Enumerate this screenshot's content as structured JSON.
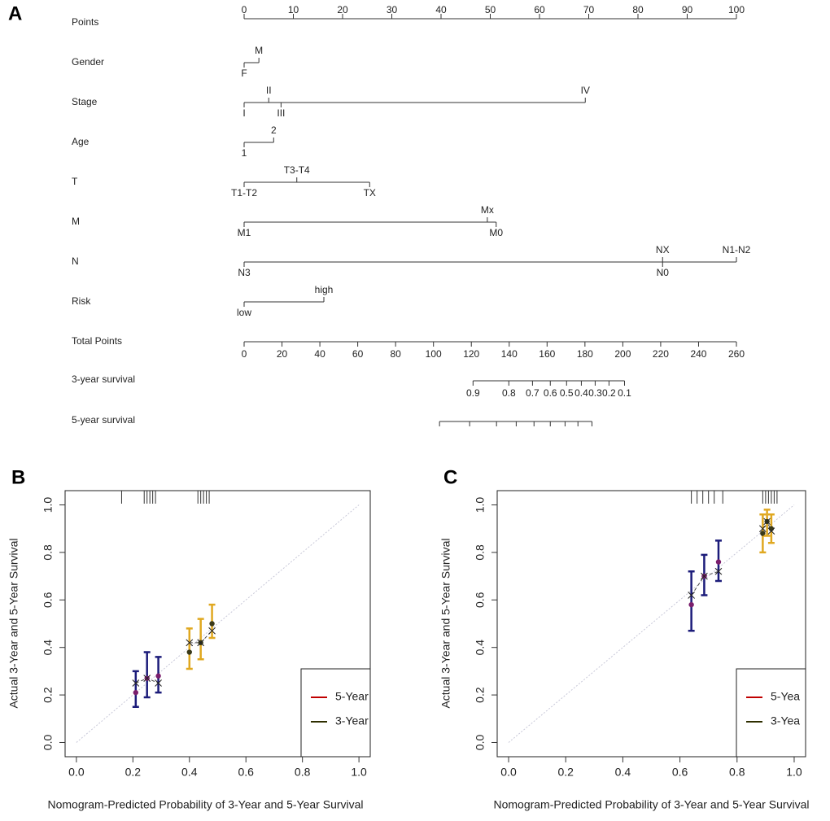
{
  "chart_data": [
    {
      "type": "nomogram",
      "panel": "A",
      "points_axis": {
        "name": "Points",
        "lim": [
          0,
          100
        ],
        "ticks": [
          0,
          10,
          20,
          30,
          40,
          50,
          60,
          70,
          80,
          90,
          100
        ]
      },
      "variables": [
        {
          "name": "Gender",
          "levels": [
            "F",
            "M"
          ],
          "points": [
            0,
            3
          ]
        },
        {
          "name": "Stage",
          "levels": [
            "I",
            "II",
            "III",
            "IV"
          ],
          "points": [
            0,
            5,
            7.5,
            69.3
          ]
        },
        {
          "name": "Age",
          "levels": [
            "1",
            "2"
          ],
          "points": [
            0,
            6
          ]
        },
        {
          "name": "T",
          "levels": [
            "T1-T2",
            "T3-T4",
            "TX"
          ],
          "points": [
            0,
            10.7,
            25.5
          ]
        },
        {
          "name": "M",
          "levels": [
            "M1",
            "Mx",
            "M0"
          ],
          "points": [
            0,
            49.4,
            51.2
          ]
        },
        {
          "name": "N",
          "levels": [
            "N3",
            "NX",
            "N0",
            "N1-N2"
          ],
          "points": [
            0,
            85,
            85,
            100
          ]
        },
        {
          "name": "Risk",
          "levels": [
            "low",
            "high"
          ],
          "points": [
            0,
            16.2
          ]
        }
      ],
      "total_axis": {
        "name": "Total Points",
        "lim": [
          0,
          260
        ],
        "ticks": [
          0,
          20,
          40,
          60,
          80,
          100,
          120,
          140,
          160,
          180,
          200,
          220,
          240,
          260
        ]
      },
      "survival_axes": [
        {
          "name": "3-year survival",
          "ticks": [
            0.9,
            0.8,
            0.7,
            0.6,
            0.5,
            0.4,
            0.3,
            0.2,
            0.1
          ],
          "total_points": [
            120.9,
            139.8,
            152.3,
            161.7,
            170.3,
            178.1,
            185.4,
            192.7,
            200.9
          ]
        },
        {
          "name": "5-year survival",
          "total_points": [
            103.2,
            119.1,
            133.3,
            143.7,
            153.1,
            161.7,
            169.5,
            176.3,
            183.7
          ]
        }
      ]
    },
    {
      "type": "calibration",
      "panel": "B",
      "x_label": "Nomogram-Predicted Probability of 3-Year and 5-Year Survival",
      "y_label": "Actual 3-Year and 5-Year Survival",
      "xlim": [
        -0.04,
        1.04
      ],
      "ylim": [
        -0.06,
        1.06
      ],
      "xticks": [
        {
          "value": 0,
          "label": "0.0"
        },
        0.2,
        0.4,
        0.6,
        0.8,
        {
          "value": 1,
          "label": "1.0"
        }
      ],
      "yticks": [
        {
          "value": 0,
          "label": "0.0"
        },
        0.2,
        0.4,
        0.6,
        0.8,
        {
          "value": 1,
          "label": "1.0"
        }
      ],
      "legend": "bottom-right",
      "rug": [
        0.16,
        0.24,
        0.25,
        0.26,
        0.27,
        0.28,
        0.43,
        0.44,
        0.45,
        0.46,
        0.47
      ],
      "series": [
        {
          "name": "5-Year",
          "color": "#c00000",
          "point_color": "#7a1e6c",
          "bar_color": "#1c1c7a",
          "x": [
            0.21,
            0.25,
            0.29
          ],
          "values": [
            0.21,
            0.27,
            0.28
          ],
          "lower": [
            0.15,
            0.19,
            0.21
          ],
          "upper": [
            0.3,
            0.38,
            0.36
          ],
          "corrected": [
            0.25,
            0.27,
            0.25
          ]
        },
        {
          "name": "3-Year",
          "color": "#2e2e00",
          "point_color": "#3a3a1a",
          "bar_color": "#e0a820",
          "x": [
            0.4,
            0.44,
            0.48
          ],
          "values": [
            0.38,
            0.42,
            0.5
          ],
          "lower": [
            0.31,
            0.35,
            0.44
          ],
          "upper": [
            0.48,
            0.52,
            0.58
          ],
          "corrected": [
            0.42,
            0.42,
            0.47
          ]
        }
      ]
    },
    {
      "type": "calibration",
      "panel": "C",
      "x_label": "Nomogram-Predicted Probability of 3-Year and 5-Year Survival",
      "y_label": "Actual 3-Year and 5-Year Survival",
      "xlim": [
        -0.04,
        1.04
      ],
      "ylim": [
        -0.06,
        1.06
      ],
      "xticks": [
        {
          "value": 0,
          "label": "0.0"
        },
        0.2,
        0.4,
        0.6,
        0.8,
        {
          "value": 1,
          "label": "1.0"
        }
      ],
      "yticks": [
        {
          "value": 0,
          "label": "0.0"
        },
        0.2,
        0.4,
        0.6,
        0.8,
        {
          "value": 1,
          "label": "1.0"
        }
      ],
      "legend": "bottom-right",
      "rug": [
        0.64,
        0.66,
        0.68,
        0.7,
        0.72,
        0.75,
        0.89,
        0.9,
        0.91,
        0.92,
        0.93,
        0.94
      ],
      "series": [
        {
          "name": "5-Yea",
          "color": "#c00000",
          "point_color": "#7a1e6c",
          "bar_color": "#1c1c7a",
          "x": [
            0.64,
            0.685,
            0.735
          ],
          "values": [
            0.58,
            0.7,
            0.76
          ],
          "lower": [
            0.47,
            0.62,
            0.68
          ],
          "upper": [
            0.72,
            0.79,
            0.85
          ],
          "corrected": [
            0.62,
            0.7,
            0.72
          ]
        },
        {
          "name": "3-Yea",
          "color": "#2e2e00",
          "point_color": "#3a3a1a",
          "bar_color": "#e0a820",
          "x": [
            0.89,
            0.905,
            0.92
          ],
          "values": [
            0.88,
            0.93,
            0.9
          ],
          "lower": [
            0.8,
            0.87,
            0.84
          ],
          "upper": [
            0.96,
            0.98,
            0.96
          ],
          "corrected": [
            0.9,
            0.93,
            0.89
          ]
        }
      ]
    }
  ]
}
